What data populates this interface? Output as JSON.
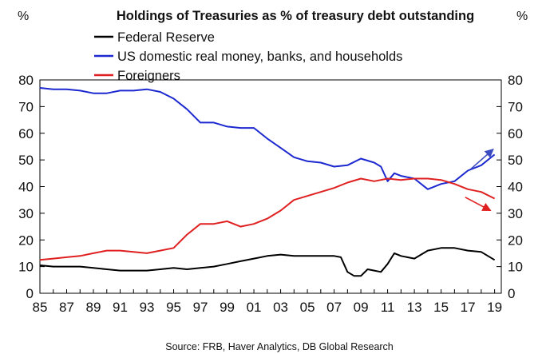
{
  "chart_data": {
    "type": "line",
    "title": "Holdings of Treasuries as % of treasury debt outstanding",
    "y_unit_left": "%",
    "y_unit_right": "%",
    "ylim": [
      0,
      80
    ],
    "y_ticks": [
      "0",
      "10",
      "20",
      "30",
      "40",
      "50",
      "60",
      "70",
      "80"
    ],
    "x_range": [
      1985,
      2019.5
    ],
    "x_ticks": [
      "85",
      "87",
      "89",
      "91",
      "93",
      "95",
      "97",
      "99",
      "01",
      "03",
      "05",
      "07",
      "09",
      "11",
      "13",
      "15",
      "17",
      "19"
    ],
    "source": "Source: FRB, Haver Analytics,  DB Global  Research",
    "legend_placement": "top-left",
    "series": [
      {
        "name": "Federal Reserve",
        "color": "#000000",
        "x": [
          1985,
          1986,
          1987,
          1988,
          1989,
          1990,
          1991,
          1992,
          1993,
          1994,
          1995,
          1996,
          1997,
          1998,
          1999,
          2000,
          2001,
          2002,
          2003,
          2004,
          2005,
          2006,
          2007,
          2007.5,
          2008,
          2008.5,
          2009,
          2009.5,
          2010,
          2010.5,
          2011,
          2011.5,
          2012,
          2013,
          2014,
          2015,
          2016,
          2017,
          2018,
          2019
        ],
        "y": [
          10.5,
          10,
          10,
          10,
          9.5,
          9,
          8.5,
          8.5,
          8.5,
          9,
          9.5,
          9,
          9.5,
          10,
          11,
          12,
          13,
          14,
          14.5,
          14,
          14,
          14,
          14,
          13.5,
          8,
          6.5,
          6.5,
          9,
          8.5,
          8,
          11,
          15,
          14,
          13,
          16,
          17,
          17,
          16,
          15.5,
          12.5
        ]
      },
      {
        "name": "US domestic real money, banks, and households",
        "color": "#1c28d0",
        "x": [
          1985,
          1986,
          1987,
          1988,
          1989,
          1990,
          1991,
          1992,
          1993,
          1994,
          1995,
          1996,
          1997,
          1998,
          1999,
          2000,
          2001,
          2002,
          2003,
          2004,
          2005,
          2006,
          2007,
          2008,
          2009,
          2010,
          2010.5,
          2011,
          2011.5,
          2012,
          2013,
          2014,
          2015,
          2016,
          2017,
          2018,
          2019
        ],
        "y": [
          77,
          76.5,
          76.5,
          76,
          75,
          75,
          76,
          76,
          76.5,
          75.5,
          73,
          69,
          64,
          64,
          62.5,
          62,
          62,
          58,
          54.5,
          51,
          49.5,
          49,
          47.5,
          48,
          50.5,
          49,
          47.5,
          42,
          45,
          44,
          43,
          39,
          41,
          42,
          46,
          48,
          52
        ]
      },
      {
        "name": "Foreigners",
        "color": "#e02020",
        "x": [
          1985,
          1986,
          1987,
          1988,
          1989,
          1990,
          1991,
          1992,
          1993,
          1994,
          1995,
          1996,
          1997,
          1998,
          1999,
          2000,
          2001,
          2002,
          2003,
          2004,
          2005,
          2006,
          2007,
          2008,
          2009,
          2010,
          2011,
          2012,
          2013,
          2014,
          2015,
          2016,
          2017,
          2018,
          2019
        ],
        "y": [
          12.5,
          13,
          13.5,
          14,
          15,
          16,
          16,
          15.5,
          15,
          16,
          17,
          22,
          26,
          26,
          27,
          25,
          26,
          28,
          31,
          35,
          36.5,
          38,
          39.5,
          41.5,
          43,
          42,
          43,
          42.5,
          43,
          43,
          42.5,
          41,
          39,
          38,
          35.5
        ]
      }
    ],
    "annotations": [
      {
        "type": "arrow",
        "color": "#3b4cc0",
        "from": [
          2017.2,
          46.5
        ],
        "to": [
          2018.9,
          54
        ]
      },
      {
        "type": "arrow",
        "color": "#e02020",
        "from": [
          2016.8,
          36
        ],
        "to": [
          2018.7,
          31
        ]
      }
    ]
  }
}
